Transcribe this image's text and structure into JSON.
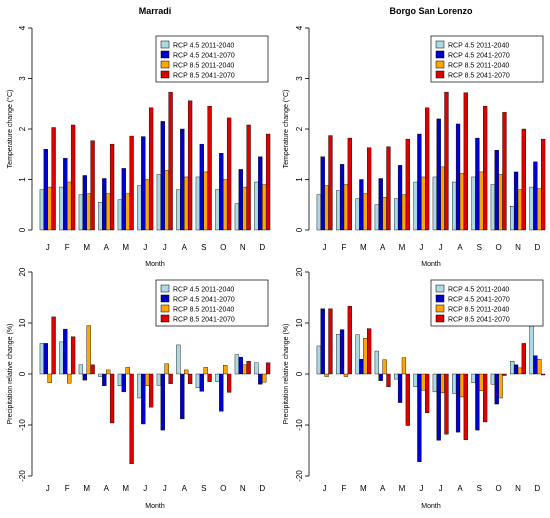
{
  "chart_data": [
    {
      "type": "bar",
      "title": "Marradi",
      "xlabel": "Month",
      "ylabel": "Temperature change (°C)",
      "ylim": [
        0,
        4
      ],
      "yticks": [
        0,
        1,
        2,
        3,
        4
      ],
      "categories": [
        "J",
        "F",
        "M",
        "A",
        "M",
        "J",
        "J",
        "A",
        "S",
        "O",
        "N",
        "D"
      ],
      "legend_position": "top-right",
      "series": [
        {
          "name": "RCP 4.5 2011-2040",
          "color": "#add8e6",
          "values": [
            0.8,
            0.85,
            0.7,
            0.55,
            0.6,
            0.88,
            1.1,
            0.8,
            1.05,
            0.8,
            0.52,
            0.95
          ]
        },
        {
          "name": "RCP 4.5 2041-2070",
          "color": "#0000cd",
          "values": [
            1.6,
            1.42,
            1.08,
            1.02,
            1.22,
            1.85,
            2.15,
            2.0,
            1.7,
            1.52,
            1.2,
            1.45
          ]
        },
        {
          "name": "RCP 8.5 2011-2040",
          "color": "#ffa500",
          "values": [
            0.85,
            0.95,
            0.72,
            0.72,
            0.72,
            1.0,
            1.18,
            1.05,
            1.15,
            1.0,
            0.85,
            0.9
          ]
        },
        {
          "name": "RCP 8.5 2041-2070",
          "color": "#dd0000",
          "values": [
            2.03,
            2.08,
            1.77,
            1.7,
            1.86,
            2.42,
            2.73,
            2.56,
            2.45,
            2.22,
            2.08,
            1.9
          ]
        }
      ]
    },
    {
      "type": "bar",
      "title": "Borgo San Lorenzo",
      "xlabel": "Month",
      "ylabel": "Temperature change (°C)",
      "ylim": [
        0,
        4
      ],
      "yticks": [
        0,
        1,
        2,
        3,
        4
      ],
      "categories": [
        "J",
        "F",
        "M",
        "A",
        "M",
        "J",
        "J",
        "A",
        "S",
        "O",
        "N",
        "D"
      ],
      "legend_position": "top-right",
      "series": [
        {
          "name": "RCP 4.5 2011-2040",
          "color": "#add8e6",
          "values": [
            0.7,
            0.78,
            0.62,
            0.5,
            0.62,
            0.95,
            1.05,
            0.95,
            1.05,
            0.9,
            0.47,
            0.85
          ]
        },
        {
          "name": "RCP 4.5 2041-2070",
          "color": "#0000cd",
          "values": [
            1.45,
            1.3,
            1.0,
            1.02,
            1.28,
            1.9,
            2.2,
            2.1,
            1.82,
            1.58,
            1.15,
            1.35
          ]
        },
        {
          "name": "RCP 8.5 2011-2040",
          "color": "#ffa500",
          "values": [
            0.88,
            0.9,
            0.72,
            0.65,
            0.7,
            1.05,
            1.25,
            1.12,
            1.15,
            1.1,
            0.8,
            0.82
          ]
        },
        {
          "name": "RCP 8.5 2041-2070",
          "color": "#dd0000",
          "values": [
            1.87,
            1.82,
            1.63,
            1.65,
            1.8,
            2.42,
            2.73,
            2.72,
            2.45,
            2.33,
            2.0,
            1.8
          ]
        }
      ]
    },
    {
      "type": "bar",
      "title": "",
      "xlabel": "Month",
      "ylabel": "Precipitation relative change (%)",
      "ylim": [
        -20,
        20
      ],
      "yticks": [
        -20,
        -10,
        0,
        10,
        20
      ],
      "categories": [
        "J",
        "F",
        "M",
        "A",
        "M",
        "J",
        "J",
        "A",
        "S",
        "O",
        "N",
        "D"
      ],
      "legend_position": "top-right",
      "series": [
        {
          "name": "RCP 4.5 2011-2040",
          "color": "#add8e6",
          "values": [
            6.0,
            6.3,
            1.8,
            -0.5,
            -2.3,
            -4.7,
            -2.2,
            5.7,
            -2.7,
            -1.5,
            3.8,
            2.2
          ]
        },
        {
          "name": "RCP 4.5 2041-2070",
          "color": "#0000cd",
          "values": [
            6.0,
            8.8,
            -1.2,
            -2.3,
            -3.5,
            -9.8,
            -11.0,
            -8.8,
            -3.4,
            -7.3,
            3.3,
            -2.0
          ]
        },
        {
          "name": "RCP 8.5 2011-2040",
          "color": "#ffa500",
          "values": [
            -1.7,
            -1.8,
            9.5,
            0.8,
            1.3,
            -2.3,
            2.0,
            0.8,
            1.3,
            1.7,
            1.8,
            -1.6
          ]
        },
        {
          "name": "RCP 8.5 2041-2070",
          "color": "#dd0000",
          "values": [
            11.2,
            7.3,
            1.8,
            -9.6,
            -17.6,
            -6.5,
            -1.9,
            -1.9,
            -1.5,
            -3.6,
            2.5,
            2.2
          ]
        }
      ]
    },
    {
      "type": "bar",
      "title": "",
      "xlabel": "Month",
      "ylabel": "Precipitation relative change (%)",
      "ylim": [
        -20,
        20
      ],
      "yticks": [
        -20,
        -10,
        0,
        10,
        20
      ],
      "categories": [
        "J",
        "F",
        "M",
        "A",
        "M",
        "J",
        "J",
        "A",
        "S",
        "O",
        "N",
        "D"
      ],
      "legend_position": "top-right",
      "series": [
        {
          "name": "RCP 4.5 2011-2040",
          "color": "#add8e6",
          "values": [
            5.5,
            7.8,
            7.7,
            4.5,
            -1.0,
            -2.5,
            -3.5,
            -3.8,
            -1.7,
            -2.0,
            2.5,
            10.3
          ]
        },
        {
          "name": "RCP 4.5 2041-2070",
          "color": "#0000cd",
          "values": [
            12.8,
            8.7,
            2.9,
            -1.3,
            -5.6,
            -17.2,
            -13.0,
            -11.4,
            -11.0,
            -5.9,
            1.8,
            3.6
          ]
        },
        {
          "name": "RCP 8.5 2011-2040",
          "color": "#ffa500",
          "values": [
            -0.5,
            -0.5,
            7.0,
            2.8,
            3.2,
            -3.2,
            -3.7,
            -4.5,
            -3.3,
            -4.7,
            1.2,
            2.9
          ]
        },
        {
          "name": "RCP 8.5 2041-2070",
          "color": "#dd0000",
          "values": [
            12.8,
            13.3,
            8.9,
            -2.5,
            -10.1,
            -7.6,
            -11.8,
            -12.9,
            -9.4,
            -0.3,
            6.0,
            -0.2
          ]
        }
      ]
    }
  ]
}
